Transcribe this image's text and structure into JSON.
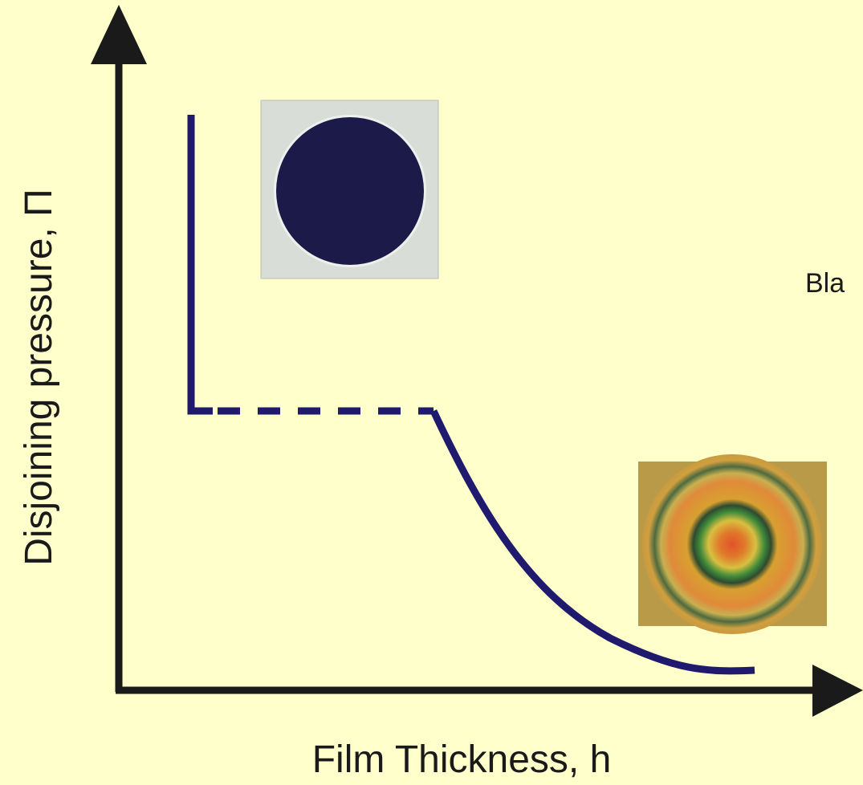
{
  "y_axis_label": "Disjoining pressure, Π",
  "x_axis_label": "Film Thickness, h",
  "annotation": "Bla"
}
